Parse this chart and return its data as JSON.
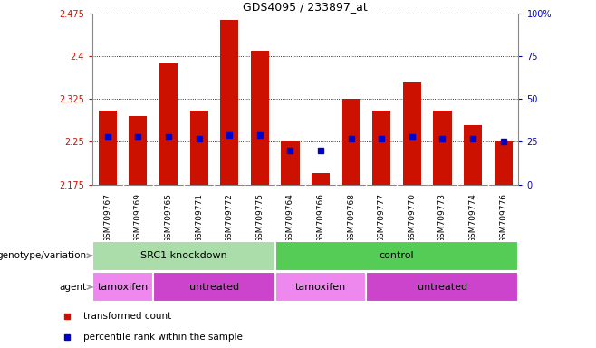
{
  "title": "GDS4095 / 233897_at",
  "samples": [
    "GSM709767",
    "GSM709769",
    "GSM709765",
    "GSM709771",
    "GSM709772",
    "GSM709775",
    "GSM709764",
    "GSM709766",
    "GSM709768",
    "GSM709777",
    "GSM709770",
    "GSM709773",
    "GSM709774",
    "GSM709776"
  ],
  "bar_values": [
    2.305,
    2.295,
    2.39,
    2.305,
    2.465,
    2.41,
    2.25,
    2.195,
    2.325,
    2.305,
    2.355,
    2.305,
    2.28,
    2.25
  ],
  "percentile_values": [
    28,
    28,
    28,
    27,
    29,
    29,
    20,
    20,
    27,
    27,
    28,
    27,
    27,
    25
  ],
  "y_min": 2.175,
  "y_max": 2.475,
  "y_ticks": [
    2.175,
    2.25,
    2.325,
    2.4,
    2.475
  ],
  "y_tick_labels": [
    "2.175",
    "2.25",
    "2.325",
    "2.4",
    "2.475"
  ],
  "right_y_ticks": [
    0,
    25,
    50,
    75,
    100
  ],
  "right_y_tick_labels": [
    "0",
    "25",
    "50",
    "75",
    "100%"
  ],
  "bar_color": "#cc1100",
  "dot_color": "#0000cc",
  "bar_width": 0.6,
  "tick_area_color": "#d0d0d0",
  "genotype_groups": [
    {
      "label": "SRC1 knockdown",
      "start": 0,
      "end": 6,
      "color": "#aaddaa"
    },
    {
      "label": "control",
      "start": 6,
      "end": 14,
      "color": "#55cc55"
    }
  ],
  "agent_groups": [
    {
      "label": "tamoxifen",
      "start": 0,
      "end": 2,
      "color": "#ee88ee"
    },
    {
      "label": "untreated",
      "start": 2,
      "end": 6,
      "color": "#cc44cc"
    },
    {
      "label": "tamoxifen",
      "start": 6,
      "end": 9,
      "color": "#ee88ee"
    },
    {
      "label": "untreated",
      "start": 9,
      "end": 14,
      "color": "#cc44cc"
    }
  ],
  "legend_items": [
    {
      "label": "transformed count",
      "color": "#cc1100"
    },
    {
      "label": "percentile rank within the sample",
      "color": "#0000cc"
    }
  ],
  "left_label_geno": "genotype/variation",
  "left_label_agent": "agent",
  "arrow_color": "#999999",
  "bg_color": "#ffffff"
}
